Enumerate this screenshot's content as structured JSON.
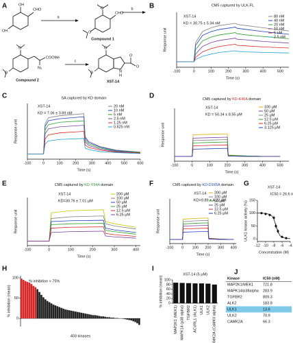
{
  "scheme": {
    "label": "A",
    "reactant_oh": "OH",
    "reactant_cho": "CHO",
    "step_a": "a",
    "step_b": "b",
    "step_c": "c",
    "compound1": "Compound 1",
    "compound1_cho": "CHO",
    "compound1_o1": "O",
    "compound1_o2": "O",
    "compound2": "Compound 2",
    "compound2_o1": "O",
    "compound2_o2": "O",
    "compound2_n3": "N₃",
    "compound2_ester": "COOMe",
    "product": "XST-14",
    "product_o1": "O",
    "product_o2": "O",
    "product_n": "N",
    "product_h": "H",
    "product_ester_o": "O",
    "product_ester_o2": "O"
  },
  "chart_data": [
    {
      "type": "line",
      "panel_label": "B",
      "title": "CM5 captured by ULK-FL",
      "annotations": [
        "XST-14",
        "KD = 30.75 ± 5.34 nM"
      ],
      "x_label": "Time (s)",
      "y_label": "Response unit",
      "xlim": [
        -100,
        550
      ],
      "ylim": [
        -10,
        90
      ],
      "xticks": [
        -100,
        0,
        100,
        200,
        300,
        400,
        500
      ],
      "x": [
        -100,
        0,
        10,
        50,
        100,
        150,
        240,
        250,
        300,
        400,
        550
      ],
      "series": [
        {
          "name": "80 nM",
          "color": "#7f7f7f",
          "values": [
            0,
            0,
            35,
            55,
            62,
            66,
            70,
            68,
            66,
            62,
            56
          ]
        },
        {
          "name": "40 nM",
          "color": "#1f3fbf",
          "values": [
            0,
            0,
            30,
            48,
            55,
            59,
            63,
            61,
            59,
            55,
            50
          ]
        },
        {
          "name": "20 nM",
          "color": "#2ca02c",
          "values": [
            0,
            0,
            22,
            38,
            45,
            49,
            53,
            51,
            49,
            46,
            42
          ]
        },
        {
          "name": "10 nM",
          "color": "#7b3fa0",
          "values": [
            0,
            0,
            14,
            28,
            35,
            39,
            43,
            41,
            40,
            37,
            34
          ]
        },
        {
          "name": "5 nM",
          "color": "#d62728",
          "values": [
            0,
            0,
            8,
            18,
            24,
            28,
            32,
            30,
            29,
            27,
            25
          ]
        },
        {
          "name": "2.5 nM",
          "color": "#1f9fd8",
          "values": [
            0,
            0,
            4,
            10,
            14,
            17,
            20,
            19,
            18,
            17,
            16
          ]
        }
      ]
    },
    {
      "type": "line",
      "panel_label": "C",
      "title": "SA captured by KD domain",
      "annotations": [
        "XST-14",
        "KD = 7.06 ± 3.89 nM"
      ],
      "x_label": "Time (s)",
      "y_label": "Response unit",
      "xlim": [
        -100,
        600
      ],
      "ylim": [
        -10,
        100
      ],
      "xticks": [
        -100,
        0,
        100,
        200,
        300,
        400,
        500,
        600
      ],
      "x": [
        -100,
        0,
        10,
        30,
        100,
        250,
        258,
        280,
        350,
        450,
        600
      ],
      "series": [
        {
          "name": "20 nM",
          "color": "#7f7f7f",
          "values": [
            0,
            0,
            60,
            72,
            76,
            80,
            35,
            25,
            15,
            8,
            4
          ]
        },
        {
          "name": "10 nM",
          "color": "#1f3fbf",
          "values": [
            0,
            0,
            55,
            66,
            70,
            74,
            32,
            23,
            14,
            7,
            3
          ]
        },
        {
          "name": "5 nM",
          "color": "#2ca02c",
          "values": [
            0,
            0,
            48,
            58,
            63,
            66,
            28,
            20,
            12,
            6,
            3
          ]
        },
        {
          "name": "2.5 nM",
          "color": "#7b3fa0",
          "values": [
            0,
            0,
            40,
            50,
            54,
            57,
            24,
            17,
            10,
            5,
            2
          ]
        },
        {
          "name": "1.25 nM",
          "color": "#d62728",
          "values": [
            0,
            0,
            30,
            38,
            42,
            45,
            18,
            13,
            8,
            4,
            2
          ]
        },
        {
          "name": "0.625 nM",
          "color": "#1f9fd8",
          "values": [
            0,
            0,
            20,
            26,
            29,
            31,
            12,
            9,
            5,
            3,
            1
          ]
        }
      ]
    },
    {
      "type": "line",
      "panel_label": "D",
      "title_parts": [
        {
          "text": "CM5 captured by "
        },
        {
          "text": "KD-K46A",
          "color": "#d62728"
        },
        {
          "text": " domain"
        }
      ],
      "annotations": [
        "XST-14",
        "KD = 50.34 ± 8.55 μM"
      ],
      "x_label": "Time (s)",
      "y_label": "Response unit",
      "xlim": [
        -100,
        550
      ],
      "ylim": [
        -10,
        100
      ],
      "xticks": [
        -100,
        0,
        100,
        200,
        300,
        400,
        500
      ],
      "x": [
        -100,
        0,
        5,
        100,
        200,
        205,
        300,
        400,
        500
      ],
      "series": [
        {
          "name": "100 μM",
          "color": "#d4b400",
          "values": [
            0,
            0,
            45,
            46,
            47,
            3,
            1,
            0,
            0
          ]
        },
        {
          "name": "50 μM",
          "color": "#7b3fa0",
          "values": [
            0,
            0,
            38,
            39,
            40,
            2,
            1,
            0,
            0
          ]
        },
        {
          "name": "25 μM",
          "color": "#7f7f7f",
          "values": [
            0,
            0,
            33,
            34,
            35,
            2,
            1,
            0,
            0
          ]
        },
        {
          "name": "12.5 μM",
          "color": "#2ca02c",
          "values": [
            0,
            0,
            28,
            29,
            30,
            2,
            1,
            0,
            0
          ]
        },
        {
          "name": "6.25 μM",
          "color": "#d62728",
          "values": [
            0,
            0,
            22,
            23,
            24,
            1,
            0,
            0,
            0
          ]
        },
        {
          "name": "3.125 μM",
          "color": "#1f3fbf",
          "values": [
            0,
            0,
            15,
            16,
            17,
            1,
            0,
            0,
            0
          ]
        }
      ]
    },
    {
      "type": "line",
      "panel_label": "E",
      "title_parts": [
        {
          "text": "CM5 captured by "
        },
        {
          "text": "KD-Y94A",
          "color": "#2ca02c"
        },
        {
          "text": " domain"
        }
      ],
      "annotations": [
        "XST-14",
        "KD=30.76 ± 7.01 μM"
      ],
      "x_label": "Time (s)",
      "y_label": "Response unit",
      "xlim": [
        -100,
        420
      ],
      "ylim": [
        -10,
        100
      ],
      "xticks": [
        -100,
        0,
        100,
        200,
        300,
        400
      ],
      "x": [
        -100,
        0,
        10,
        100,
        250,
        260,
        300,
        400
      ],
      "series": [
        {
          "name": "200 μM",
          "color": "#c8c800",
          "values": [
            0,
            0,
            65,
            70,
            72,
            45,
            40,
            32
          ]
        },
        {
          "name": "100 μM",
          "color": "#7f7f7f",
          "values": [
            0,
            0,
            52,
            56,
            58,
            40,
            35,
            28
          ]
        },
        {
          "name": "50 μM",
          "color": "#1f3fbf",
          "values": [
            0,
            0,
            45,
            47,
            48,
            30,
            26,
            20
          ]
        },
        {
          "name": "25 μM",
          "color": "#2ca02c",
          "values": [
            0,
            0,
            38,
            40,
            41,
            25,
            22,
            16
          ]
        },
        {
          "name": "12.5 μM",
          "color": "#d62728",
          "values": [
            0,
            0,
            30,
            32,
            33,
            18,
            15,
            11
          ]
        },
        {
          "name": "6.25 μM",
          "color": "#7b3fa0",
          "values": [
            0,
            0,
            20,
            22,
            23,
            12,
            10,
            7
          ]
        }
      ]
    },
    {
      "type": "line",
      "panel_label": "F",
      "title_parts": [
        {
          "text": "CM5 captured by "
        },
        {
          "text": "KD-D165A",
          "color": "#1f3fbf"
        },
        {
          "text": " domain"
        }
      ],
      "annotations": [
        "XST-14",
        "KD=9.89 ± 4.22 μM"
      ],
      "x_label": "Time (s)",
      "y_label": "Response unit",
      "xlim": [
        -100,
        420
      ],
      "ylim": [
        -10,
        100
      ],
      "xticks": [
        -100,
        0,
        100,
        200,
        300,
        400
      ],
      "x": [
        -100,
        0,
        5,
        100,
        200,
        205,
        300,
        400
      ],
      "series": [
        {
          "name": "200 μM",
          "color": "#d4b400",
          "values": [
            0,
            0,
            50,
            52,
            53,
            3,
            1,
            0
          ]
        },
        {
          "name": "100 μM",
          "color": "#7f7f7f",
          "values": [
            0,
            0,
            44,
            46,
            47,
            3,
            1,
            0
          ]
        },
        {
          "name": "50 μM",
          "color": "#2ca02c",
          "values": [
            0,
            0,
            38,
            40,
            41,
            2,
            1,
            0
          ]
        },
        {
          "name": "25 μM",
          "color": "#7b3fa0",
          "values": [
            0,
            0,
            33,
            34,
            35,
            2,
            1,
            0
          ]
        },
        {
          "name": "12.5 μM",
          "color": "#d62728",
          "values": [
            0,
            0,
            26,
            27,
            28,
            2,
            0,
            0
          ]
        },
        {
          "name": "6.25 μM",
          "color": "#1f3fbf",
          "values": [
            0,
            0,
            18,
            19,
            20,
            1,
            0,
            0
          ]
        }
      ]
    },
    {
      "type": "dose-response",
      "panel_label": "G",
      "title": "XST-14",
      "annotations": [
        "IC50 = 26.6 nM"
      ],
      "x_label": "Concentration (M)",
      "y_label": "ULK1 kinase activity (%)",
      "xlim": [
        -12,
        -4
      ],
      "ylim": [
        -10,
        150
      ],
      "xticks": [
        -12,
        -10,
        -8,
        -6,
        -4
      ],
      "yticks": [
        0,
        50,
        100,
        150
      ],
      "color": "#111111",
      "points": {
        "x": [
          -11,
          -10,
          -9,
          -8,
          -7.5,
          -7,
          -6,
          -5
        ],
        "values": [
          100,
          97,
          93,
          82,
          50,
          30,
          8,
          3
        ],
        "errors": [
          3,
          4,
          5,
          8,
          10,
          8,
          4,
          3
        ]
      },
      "fit": {
        "x": [
          -12,
          -11,
          -10,
          -9,
          -8.5,
          -8,
          -7.5,
          -7,
          -6.5,
          -6,
          -5,
          -4
        ],
        "values": [
          101,
          100,
          99,
          95,
          90,
          78,
          52,
          28,
          13,
          6,
          2,
          1
        ]
      }
    },
    {
      "type": "bar-ranked",
      "panel_label": "H",
      "annotations": [
        "% inhibition > 75%"
      ],
      "annotation_color": "#d62728",
      "x_label": "403 kinases",
      "y_label": "% inhibition (mean)",
      "ylim": [
        -20,
        105
      ],
      "yticks": [
        0,
        50,
        100
      ],
      "series": [
        {
          "color": "#d62728",
          "values": [
            98,
            95,
            92,
            90,
            88,
            85,
            80,
            77
          ]
        },
        {
          "color": "#222222",
          "values": [
            72,
            65,
            58,
            52,
            47,
            43,
            40,
            37,
            34,
            32,
            30,
            28,
            26,
            24,
            22,
            21,
            20,
            19,
            18,
            17,
            16,
            15,
            14,
            13,
            12,
            11,
            10,
            9,
            8,
            8,
            7,
            6,
            5,
            5,
            4,
            3,
            3,
            2,
            2,
            1,
            1,
            0,
            0,
            -1,
            -2,
            -3,
            -4,
            -5,
            -7,
            -9,
            -12,
            -16
          ]
        }
      ]
    },
    {
      "type": "bar",
      "panel_label": "I",
      "title": "XST-14 (5 μM)",
      "y_label": "% inhibition (mean)",
      "ylim": [
        0,
        100
      ],
      "yticks": [
        0,
        20,
        40,
        60,
        80,
        100
      ],
      "color": "#111111",
      "categories": [
        "MAP2K1 (MEK1)",
        "MAPK14 (p38 alpha)",
        "TGFBR2",
        "ACVRL1 (ALK1)",
        "ULK1",
        "ULK2",
        "CAMK2A (CaMKII alpha)"
      ],
      "values": [
        88,
        87,
        86,
        85,
        85,
        84,
        80
      ]
    }
  ],
  "table": {
    "label": "J",
    "header": [
      "Kinase",
      "IC50 (nM)"
    ],
    "rows": [
      {
        "cells": [
          "MAP2K1/MEK1",
          "721.8"
        ]
      },
      {
        "cells": [
          "MAPK14/p38alpha",
          "283.9"
        ]
      },
      {
        "cells": [
          "TGFBR2",
          "809.3"
        ]
      },
      {
        "cells": [
          "ALK2",
          "183.8"
        ]
      },
      {
        "cells": [
          "ULK1",
          "13.6"
        ],
        "highlight": "#7ec8e8"
      },
      {
        "cells": [
          "ULK2",
          "70.9"
        ]
      },
      {
        "cells": [
          "CAMK2A",
          "66.3"
        ]
      }
    ]
  }
}
